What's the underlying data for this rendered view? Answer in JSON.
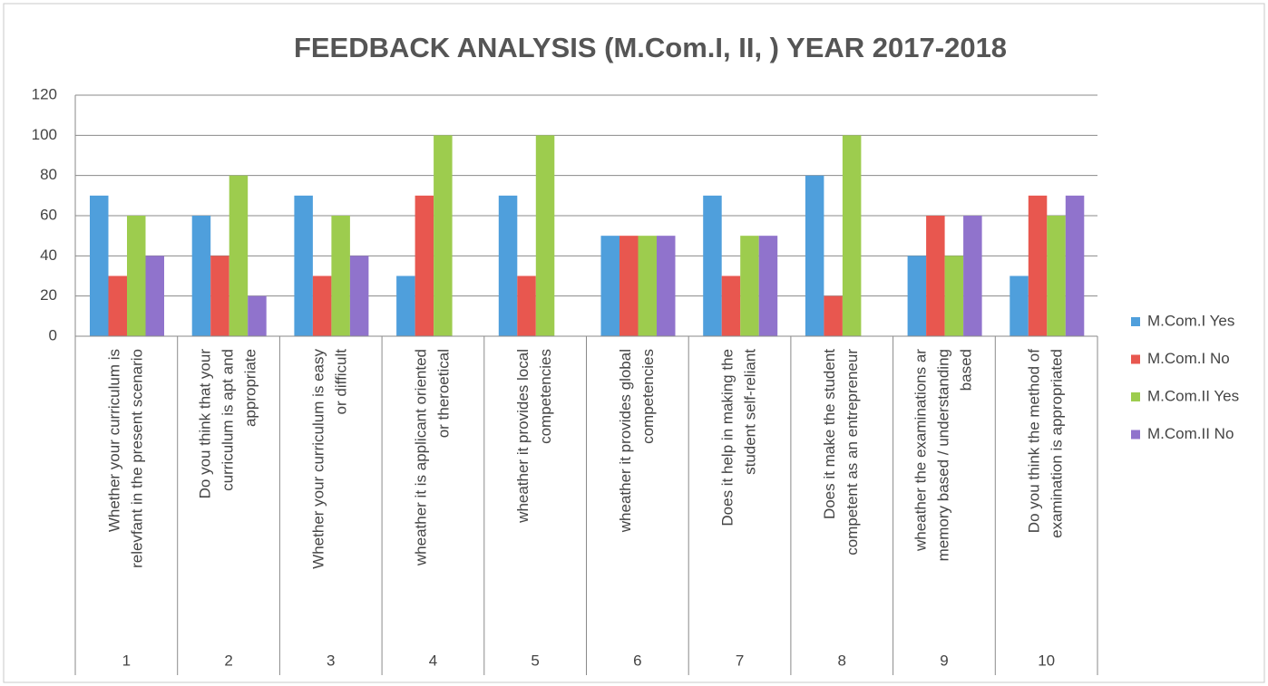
{
  "chart_data": {
    "type": "bar",
    "title": "FEEDBACK ANALYSIS   (M.Com.I, II, ) YEAR 2017-2018",
    "categories": [
      "1",
      "2",
      "3",
      "4",
      "5",
      "6",
      "7",
      "8",
      "9",
      "10"
    ],
    "category_descriptions": [
      [
        "Whether your curriculum is",
        "relevfant in the present scenario"
      ],
      [
        "Do you think that your",
        "curriculum is apt and",
        "appropriate"
      ],
      [
        "Whether your curriculum is easy",
        "or difficult"
      ],
      [
        "wheather it is applicant oriented",
        "or theroetical"
      ],
      [
        "wheather it provides local",
        "competencies"
      ],
      [
        "wheather it provides global",
        "competencies"
      ],
      [
        "Does it help in making the",
        "student self-reliant"
      ],
      [
        "Does it make the student",
        "competent as an entrepreneur"
      ],
      [
        "wheather the examinations ar",
        "memory based / understanding",
        "based"
      ],
      [
        "Do you think the method of",
        "examination is appropriated"
      ]
    ],
    "series": [
      {
        "name": "M.Com.I   Yes",
        "color": "#4f9fdc",
        "values": [
          70,
          60,
          70,
          30,
          70,
          50,
          70,
          80,
          40,
          30
        ]
      },
      {
        "name": "M.Com.I No",
        "color": "#e8574f",
        "values": [
          30,
          40,
          30,
          70,
          30,
          50,
          30,
          20,
          60,
          70
        ]
      },
      {
        "name": "M.Com.II Yes",
        "color": "#9dcc4e",
        "values": [
          60,
          80,
          60,
          100,
          100,
          50,
          50,
          100,
          40,
          60
        ]
      },
      {
        "name": "M.Com.II No",
        "color": "#9073cc",
        "values": [
          40,
          20,
          40,
          0,
          0,
          50,
          50,
          0,
          60,
          70
        ]
      }
    ],
    "ylim": [
      0,
      120
    ],
    "yticks": [
      0,
      20,
      40,
      60,
      80,
      100,
      120
    ],
    "grid": true,
    "legend": "right"
  }
}
